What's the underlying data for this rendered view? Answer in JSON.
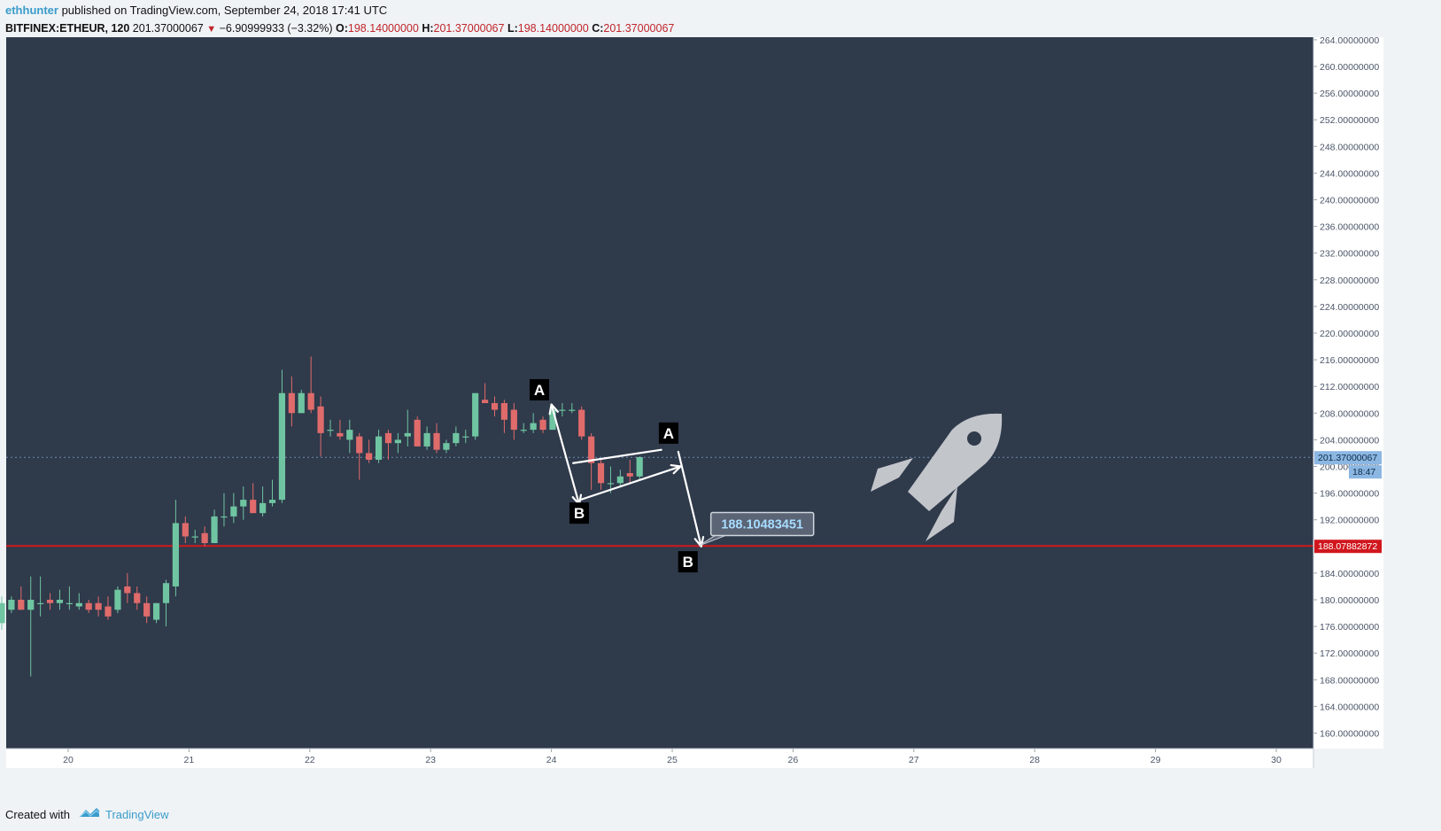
{
  "header": {
    "author": "ethhunter",
    "published_text": " published on TradingView.com, September 24, 2018 17:41 UTC",
    "symbol": "BITFINEX:ETHEUR, 120",
    "last_price": "201.37000067",
    "change": "−6.90999933 (−3.32%)",
    "o_label": "O:",
    "o_value": "198.14000000",
    "h_label": "H:",
    "h_value": "201.37000067",
    "l_label": "L:",
    "l_value": "198.14000000",
    "c_label": "C:",
    "c_value": "201.37000067"
  },
  "footer": {
    "created_with": "Created with",
    "brand": "TradingView"
  },
  "colors": {
    "background": "#2f3a4b",
    "up": "#6fc5a1",
    "down": "#e06b6b",
    "support_line": "#d0171d",
    "axis_bg": "#ffffff",
    "grid_text": "#4a5568",
    "price_line": "#6e8bb0",
    "price_tag": "#8cb7e3"
  },
  "chart_data": {
    "type": "candlestick",
    "x_ticks": [
      "20",
      "21",
      "22",
      "23",
      "24",
      "25",
      "26",
      "27",
      "28",
      "29",
      "30"
    ],
    "y_ticks": [
      "264.00000000",
      "260.00000000",
      "256.00000000",
      "252.00000000",
      "248.00000000",
      "244.00000000",
      "240.00000000",
      "236.00000000",
      "232.00000000",
      "228.00000000",
      "224.00000000",
      "220.00000000",
      "216.00000000",
      "212.00000000",
      "208.00000000",
      "204.00000000",
      "200.00000000",
      "196.00000000",
      "192.00000000",
      "188.00000000",
      "184.00000000",
      "180.00000000",
      "176.00000000",
      "172.00000000",
      "168.00000000",
      "164.00000000",
      "160.00000000"
    ],
    "ylim": [
      158.5,
      265
    ],
    "last_price_tag": "201.37000067",
    "countdown_tag": "18:47",
    "support_level": 188.07882872,
    "support_tag": "188.07882872",
    "target_callout": "188.10483451",
    "pattern_labels": [
      "A",
      "B",
      "A",
      "B"
    ],
    "candles": [
      {
        "d": 19.45,
        "o": 176.5,
        "h": 180.5,
        "l": 175.5,
        "c": 179.5
      },
      {
        "d": 19.53,
        "o": 178.5,
        "h": 180.5,
        "l": 178,
        "c": 180
      },
      {
        "d": 19.61,
        "o": 180,
        "h": 182,
        "l": 178.5,
        "c": 178.5
      },
      {
        "d": 19.69,
        "o": 178.5,
        "h": 183.5,
        "l": 168.5,
        "c": 180
      },
      {
        "d": 19.77,
        "o": 179.5,
        "h": 183.5,
        "l": 177.5,
        "c": 179.5
      },
      {
        "d": 19.85,
        "o": 180,
        "h": 181,
        "l": 178.5,
        "c": 179.5
      },
      {
        "d": 19.93,
        "o": 179.5,
        "h": 181.5,
        "l": 178.5,
        "c": 180
      },
      {
        "d": 20.01,
        "o": 179.5,
        "h": 182,
        "l": 178.5,
        "c": 179.5
      },
      {
        "d": 20.09,
        "o": 179,
        "h": 181,
        "l": 178.5,
        "c": 179.5
      },
      {
        "d": 20.17,
        "o": 179.5,
        "h": 180,
        "l": 178,
        "c": 178.5
      },
      {
        "d": 20.25,
        "o": 179.5,
        "h": 180.5,
        "l": 177.5,
        "c": 178.5
      },
      {
        "d": 20.33,
        "o": 179,
        "h": 180.5,
        "l": 177,
        "c": 177.5
      },
      {
        "d": 20.41,
        "o": 178.5,
        "h": 182,
        "l": 178,
        "c": 181.5
      },
      {
        "d": 20.49,
        "o": 182,
        "h": 184,
        "l": 179.5,
        "c": 181
      },
      {
        "d": 20.57,
        "o": 181,
        "h": 182,
        "l": 178.5,
        "c": 179.5
      },
      {
        "d": 20.65,
        "o": 179.5,
        "h": 180.5,
        "l": 176.5,
        "c": 177.5
      },
      {
        "d": 20.73,
        "o": 177,
        "h": 179.5,
        "l": 176.5,
        "c": 179.5
      },
      {
        "d": 20.81,
        "o": 179.5,
        "h": 183,
        "l": 176,
        "c": 182.5
      },
      {
        "d": 20.89,
        "o": 182,
        "h": 195,
        "l": 180.5,
        "c": 191.5
      },
      {
        "d": 20.97,
        "o": 191.5,
        "h": 192.5,
        "l": 188.5,
        "c": 189.5
      },
      {
        "d": 21.05,
        "o": 189.5,
        "h": 190.5,
        "l": 188.5,
        "c": 189.5
      },
      {
        "d": 21.13,
        "o": 190,
        "h": 191,
        "l": 188,
        "c": 188.5
      },
      {
        "d": 21.21,
        "o": 188.5,
        "h": 193.5,
        "l": 188.5,
        "c": 192.5
      },
      {
        "d": 21.29,
        "o": 192.5,
        "h": 196,
        "l": 191,
        "c": 192.5
      },
      {
        "d": 21.37,
        "o": 192.5,
        "h": 196,
        "l": 191.5,
        "c": 194
      },
      {
        "d": 21.45,
        "o": 194,
        "h": 197,
        "l": 192,
        "c": 195
      },
      {
        "d": 21.53,
        "o": 195,
        "h": 197.5,
        "l": 193,
        "c": 193
      },
      {
        "d": 21.61,
        "o": 193,
        "h": 197,
        "l": 192.5,
        "c": 194.5
      },
      {
        "d": 21.69,
        "o": 194.5,
        "h": 198,
        "l": 194,
        "c": 195
      },
      {
        "d": 21.77,
        "o": 195,
        "h": 214.5,
        "l": 194.5,
        "c": 211
      },
      {
        "d": 21.85,
        "o": 211,
        "h": 213.5,
        "l": 206,
        "c": 208
      },
      {
        "d": 21.93,
        "o": 208,
        "h": 211.5,
        "l": 208,
        "c": 211
      },
      {
        "d": 22.01,
        "o": 211,
        "h": 216.5,
        "l": 208,
        "c": 208.5
      },
      {
        "d": 22.09,
        "o": 209,
        "h": 210.5,
        "l": 201.5,
        "c": 205
      },
      {
        "d": 22.17,
        "o": 205.5,
        "h": 207,
        "l": 204.5,
        "c": 205.5
      },
      {
        "d": 22.25,
        "o": 205,
        "h": 207,
        "l": 204,
        "c": 204.5
      },
      {
        "d": 22.33,
        "o": 204,
        "h": 207,
        "l": 202,
        "c": 205.5
      },
      {
        "d": 22.41,
        "o": 204.5,
        "h": 205,
        "l": 198,
        "c": 202
      },
      {
        "d": 22.49,
        "o": 202,
        "h": 204,
        "l": 200.5,
        "c": 201
      },
      {
        "d": 22.57,
        "o": 201,
        "h": 205.5,
        "l": 200.5,
        "c": 204.5
      },
      {
        "d": 22.65,
        "o": 205,
        "h": 205.5,
        "l": 201,
        "c": 203.5
      },
      {
        "d": 22.73,
        "o": 203.5,
        "h": 205,
        "l": 202,
        "c": 204
      },
      {
        "d": 22.81,
        "o": 204.5,
        "h": 208.5,
        "l": 203,
        "c": 205
      },
      {
        "d": 22.89,
        "o": 207,
        "h": 207.5,
        "l": 203,
        "c": 203
      },
      {
        "d": 22.97,
        "o": 203,
        "h": 206,
        "l": 202.5,
        "c": 205
      },
      {
        "d": 23.05,
        "o": 205,
        "h": 206.5,
        "l": 202,
        "c": 202.5
      },
      {
        "d": 23.13,
        "o": 202.5,
        "h": 204,
        "l": 202,
        "c": 203.5
      },
      {
        "d": 23.21,
        "o": 203.5,
        "h": 206,
        "l": 203,
        "c": 205
      },
      {
        "d": 23.29,
        "o": 204.5,
        "h": 205.5,
        "l": 203.5,
        "c": 204.5
      },
      {
        "d": 23.37,
        "o": 204.5,
        "h": 211,
        "l": 204,
        "c": 211
      },
      {
        "d": 23.45,
        "o": 210,
        "h": 212.5,
        "l": 209.5,
        "c": 209.5
      },
      {
        "d": 23.53,
        "o": 209.5,
        "h": 210.5,
        "l": 207.5,
        "c": 208.5
      },
      {
        "d": 23.61,
        "o": 209.5,
        "h": 210,
        "l": 205,
        "c": 207
      },
      {
        "d": 23.69,
        "o": 208.5,
        "h": 209.5,
        "l": 204,
        "c": 205.5
      },
      {
        "d": 23.77,
        "o": 205.5,
        "h": 206.5,
        "l": 205,
        "c": 205.5
      },
      {
        "d": 23.85,
        "o": 205.5,
        "h": 208,
        "l": 205,
        "c": 206.5
      },
      {
        "d": 23.93,
        "o": 207,
        "h": 207.5,
        "l": 205,
        "c": 205.5
      },
      {
        "d": 24.01,
        "o": 205.5,
        "h": 208.5,
        "l": 205.5,
        "c": 208.5
      },
      {
        "d": 24.09,
        "o": 208.5,
        "h": 209.5,
        "l": 207.5,
        "c": 208.5
      },
      {
        "d": 24.17,
        "o": 208.5,
        "h": 209.5,
        "l": 208,
        "c": 208.5
      },
      {
        "d": 24.25,
        "o": 208.5,
        "h": 209,
        "l": 204,
        "c": 204.5
      },
      {
        "d": 24.33,
        "o": 204.5,
        "h": 205,
        "l": 196.5,
        "c": 200.5
      },
      {
        "d": 24.41,
        "o": 200.5,
        "h": 201,
        "l": 196.5,
        "c": 197.5
      },
      {
        "d": 24.49,
        "o": 197.5,
        "h": 200,
        "l": 196,
        "c": 197.5
      },
      {
        "d": 24.57,
        "o": 197.5,
        "h": 199.5,
        "l": 197,
        "c": 198.5
      },
      {
        "d": 24.65,
        "o": 199,
        "h": 201,
        "l": 197.5,
        "c": 198.5
      },
      {
        "d": 24.73,
        "o": 198.5,
        "h": 201.5,
        "l": 198,
        "c": 201.4
      }
    ],
    "drawings": {
      "pattern_lines": [
        [
          [
            24.04,
            209.5
          ],
          [
            24.24,
            194.5
          ]
        ],
        [
          [
            24.04,
            209.5
          ],
          [
            24.24,
            194.5
          ]
        ]
      ]
    }
  }
}
